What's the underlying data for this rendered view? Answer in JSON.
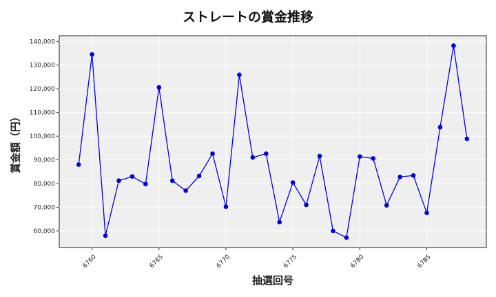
{
  "chart_data": {
    "type": "line",
    "title": "ストレートの賞金推移",
    "xlabel": "抽選回号",
    "ylabel": "賞金額（円）",
    "x": [
      6759,
      6760,
      6761,
      6762,
      6763,
      6764,
      6765,
      6766,
      6767,
      6768,
      6769,
      6770,
      6771,
      6772,
      6773,
      6774,
      6775,
      6776,
      6777,
      6778,
      6779,
      6780,
      6781,
      6782,
      6783,
      6784,
      6785,
      6786,
      6787,
      6788
    ],
    "series": [
      {
        "values": [
          88000,
          134500,
          58000,
          81200,
          83000,
          79800,
          120600,
          81200,
          77000,
          83200,
          92600,
          70200,
          125900,
          91000,
          92600,
          63700,
          80400,
          71000,
          91600,
          60000,
          57200,
          91400,
          90600,
          70800,
          82800,
          83400,
          67600,
          103800,
          138200,
          98900
        ],
        "color": "#0000dd"
      }
    ],
    "xticks": [
      "6760",
      "6765",
      "6770",
      "6775",
      "6780",
      "6785"
    ],
    "yticks": [
      "60,000",
      "70,000",
      "80,000",
      "90,000",
      "100,000",
      "110,000",
      "120,000",
      "130,000",
      "140,000"
    ],
    "xlim": [
      6757.55,
      6789.45
    ],
    "ylim": [
      53000,
      142400
    ],
    "grid": true,
    "plot_background": "#efefef"
  }
}
